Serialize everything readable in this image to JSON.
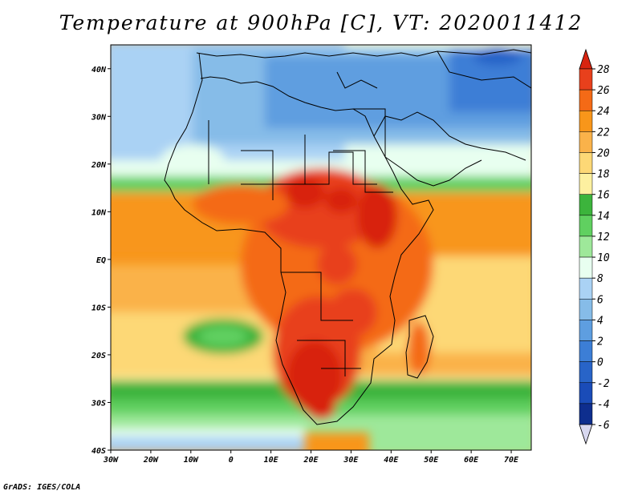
{
  "title": "Temperature at 900hPa [C], VT: 2020011412",
  "credit": "GrADS: IGES/COLA",
  "map": {
    "lat_labels": [
      "40N",
      "30N",
      "20N",
      "10N",
      "EQ",
      "10S",
      "20S",
      "30S",
      "40S"
    ],
    "lon_labels": [
      "30W",
      "20W",
      "10W",
      "0",
      "10E",
      "20E",
      "30E",
      "40E",
      "50E",
      "60E",
      "70E"
    ]
  },
  "colorbar": {
    "labels": [
      "28",
      "26",
      "24",
      "22",
      "20",
      "18",
      "16",
      "14",
      "12",
      "10",
      "8",
      "6",
      "4",
      "2",
      "0",
      "-2",
      "-4",
      "-6"
    ],
    "colors": [
      "#e8401c",
      "#f46a16",
      "#f8961a",
      "#fab24a",
      "#fdd876",
      "#fdf0a0",
      "#3cb43c",
      "#60d060",
      "#9ee89a",
      "#e8fff0",
      "#aad2f4",
      "#86bce8",
      "#5e9ee0",
      "#3c7ed6",
      "#2864c8",
      "#1a4cb8",
      "#0e2e8e"
    ],
    "top_color": "#d82410",
    "bottom_color": "#d8d8f0"
  },
  "chart_data": {
    "type": "heatmap",
    "title": "Temperature at 900hPa [C], VT: 2020011412",
    "variable": "Temperature at 900hPa",
    "units": "C",
    "valid_time": "2020011412",
    "x_range": [
      -30,
      75
    ],
    "y_range": [
      -40,
      45
    ],
    "levels": [
      -6,
      -4,
      -2,
      0,
      2,
      4,
      6,
      8,
      10,
      12,
      14,
      16,
      18,
      20,
      22,
      24,
      26,
      28
    ]
  }
}
